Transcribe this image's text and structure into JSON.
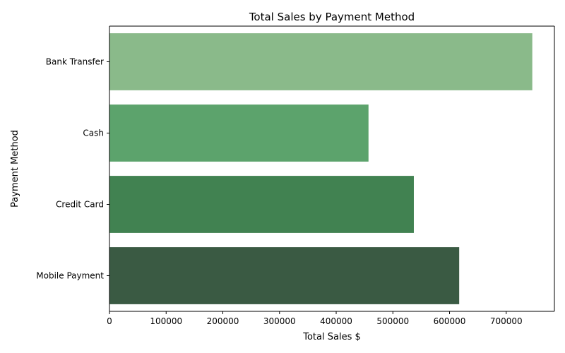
{
  "chart_data": {
    "type": "bar",
    "orientation": "horizontal",
    "title": "Total Sales by Payment Method",
    "xlabel": "Total Sales $",
    "ylabel": "Payment Method",
    "categories": [
      "Bank Transfer",
      "Cash",
      "Credit Card",
      "Mobile Payment"
    ],
    "values": [
      746000,
      457000,
      537000,
      617000
    ],
    "colors": [
      "#8aba8a",
      "#5ca36c",
      "#418251",
      "#3a5a43"
    ],
    "xlim": [
      0,
      785000
    ],
    "xticks": [
      0,
      100000,
      200000,
      300000,
      400000,
      500000,
      600000,
      700000
    ],
    "xtick_labels": [
      "0",
      "100000",
      "200000",
      "300000",
      "400000",
      "500000",
      "600000",
      "700000"
    ],
    "grid": false,
    "legend": "none"
  }
}
